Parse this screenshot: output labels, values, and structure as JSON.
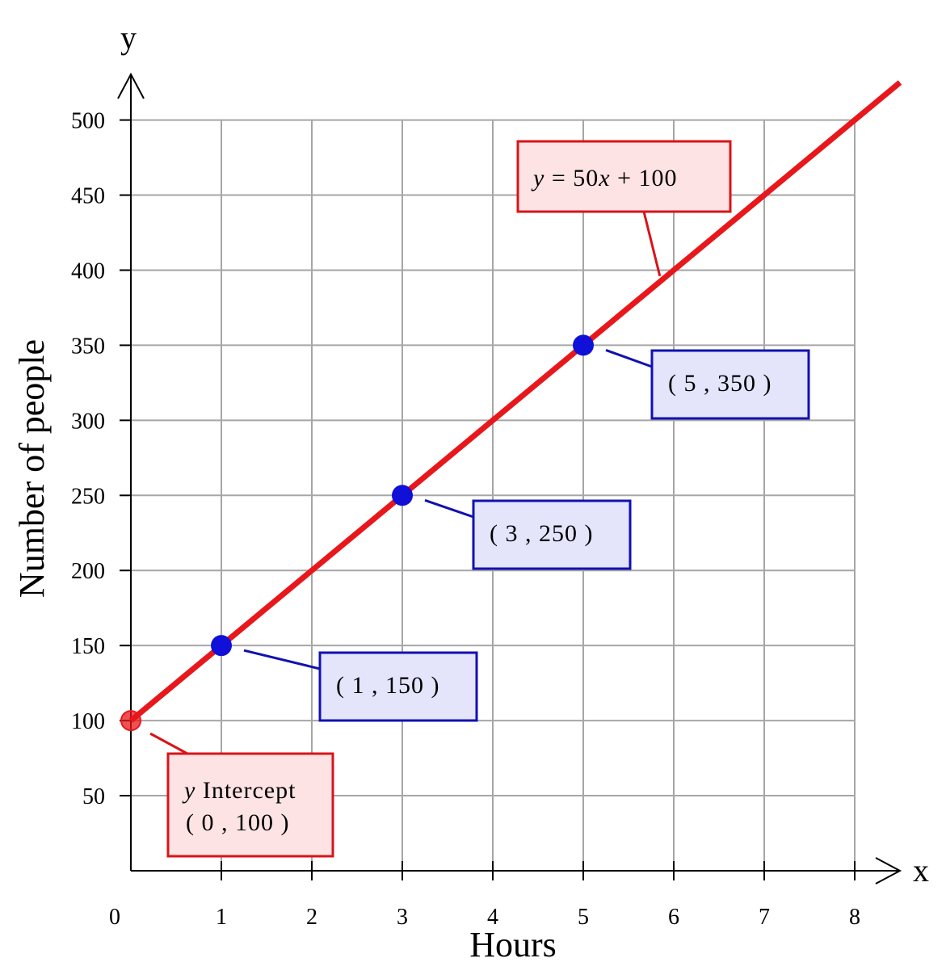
{
  "chart_data": {
    "type": "line",
    "xlabel": "Hours",
    "ylabel": "Number of people",
    "x_axis_letter": "x",
    "y_axis_letter": "y",
    "xlim": [
      0,
      8
    ],
    "ylim": [
      0,
      500
    ],
    "x_ticks": [
      0,
      1,
      2,
      3,
      4,
      5,
      6,
      7,
      8
    ],
    "x_tick_labels": [
      "0",
      "1",
      "2",
      "3",
      "4",
      "5",
      "6",
      "7",
      "8"
    ],
    "y_ticks": [
      50,
      100,
      150,
      200,
      250,
      300,
      350,
      400,
      450,
      500
    ],
    "y_tick_labels": [
      "50",
      "100",
      "150",
      "200",
      "250",
      "300",
      "350",
      "400",
      "450",
      "500"
    ],
    "grid": true,
    "line": {
      "slope": 50,
      "intercept": 100,
      "x_range": [
        0,
        8.5
      ],
      "color": "#e8171b"
    },
    "equation_label": {
      "var": "y",
      "eq": "=",
      "coef": "50",
      "x": "x",
      "rest": "+ 100",
      "anchor_x": 5.9,
      "anchor_y": 395
    },
    "points": [
      {
        "x": 0,
        "y": 100,
        "kind": "intercept",
        "color": "#e8171b"
      },
      {
        "x": 1,
        "y": 150,
        "kind": "point",
        "color": "#1010d8",
        "label": "( 1 , 150 )"
      },
      {
        "x": 3,
        "y": 250,
        "kind": "point",
        "color": "#1010d8",
        "label": "( 3 , 250 )"
      },
      {
        "x": 5,
        "y": 350,
        "kind": "point",
        "color": "#1010d8",
        "label": "( 5 , 350 )"
      }
    ],
    "intercept_label": {
      "line1_var": "y",
      "line1_rest": " Intercept",
      "line2": "( 0 , 100 )"
    },
    "colors": {
      "line": "#e8171b",
      "point": "#1010d8",
      "callout_blue_border": "#1111b0",
      "callout_blue_fill": "#e4e4fb",
      "callout_red_border": "#d8141a",
      "callout_red_fill": "#fde3e4"
    }
  }
}
